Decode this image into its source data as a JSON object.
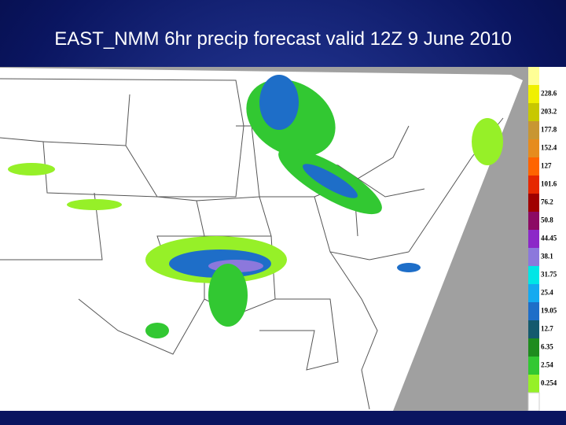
{
  "title": "EAST_NMM 6hr precip forecast valid 12Z 9 June 2010",
  "legend": [
    {
      "label": "228.6",
      "color": "#f0f000"
    },
    {
      "label": "203.2",
      "color": "#c8c800"
    },
    {
      "label": "177.8",
      "color": "#c89632"
    },
    {
      "label": "152.4",
      "color": "#e68c1e"
    },
    {
      "label": "127",
      "color": "#ff6400"
    },
    {
      "label": "101.6",
      "color": "#e62800"
    },
    {
      "label": "76.2",
      "color": "#a00000"
    },
    {
      "label": "50.8",
      "color": "#8c0a64"
    },
    {
      "label": "44.45",
      "color": "#8c28c8"
    },
    {
      "label": "38.1",
      "color": "#8c78dc"
    },
    {
      "label": "31.75",
      "color": "#00e6e6"
    },
    {
      "label": "25.4",
      "color": "#14aaf0"
    },
    {
      "label": "19.05",
      "color": "#1e6ec8"
    },
    {
      "label": "12.7",
      "color": "#145a6e"
    },
    {
      "label": "6.35",
      "color": "#1e8c1e"
    },
    {
      "label": "2.54",
      "color": "#32c832"
    },
    {
      "label": "0.254",
      "color": "#96f028"
    }
  ]
}
